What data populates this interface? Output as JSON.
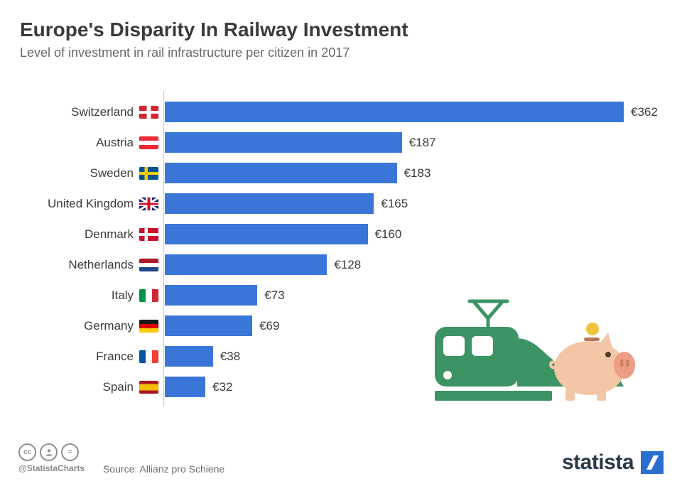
{
  "header": {
    "title": "Europe's Disparity In Railway Investment",
    "subtitle": "Level of investment in rail infrastructure per citizen in 2017"
  },
  "chart_data": {
    "type": "bar",
    "orientation": "horizontal",
    "title": "Europe's Disparity In Railway Investment",
    "xlabel": "",
    "ylabel": "",
    "unit": "EUR per citizen",
    "xlim": [
      0,
      362
    ],
    "grid": false,
    "legend": false,
    "bar_color": "#3a76d8",
    "categories": [
      "Switzerland",
      "Austria",
      "Sweden",
      "United Kingdom",
      "Denmark",
      "Netherlands",
      "Italy",
      "Germany",
      "France",
      "Spain"
    ],
    "values": [
      362,
      187,
      183,
      165,
      160,
      128,
      73,
      69,
      38,
      32
    ],
    "value_labels": [
      "€362",
      "€187",
      "€183",
      "€165",
      "€160",
      "€128",
      "€73",
      "€69",
      "€38",
      "€32"
    ],
    "flags": [
      "switzerland",
      "austria",
      "sweden",
      "united-kingdom",
      "denmark",
      "netherlands",
      "italy",
      "germany",
      "france",
      "spain"
    ]
  },
  "footer": {
    "handle": "@StatistaCharts",
    "source": "Source: Allianz pro Schiene",
    "brand": "statista",
    "cc_equals": "=",
    "cc_label": "cc"
  },
  "illustration": {
    "train_color": "#3c9464",
    "pig_color": "#f3c6a5",
    "snout_color": "#eb9e85",
    "coin_color": "#f0c43a"
  }
}
